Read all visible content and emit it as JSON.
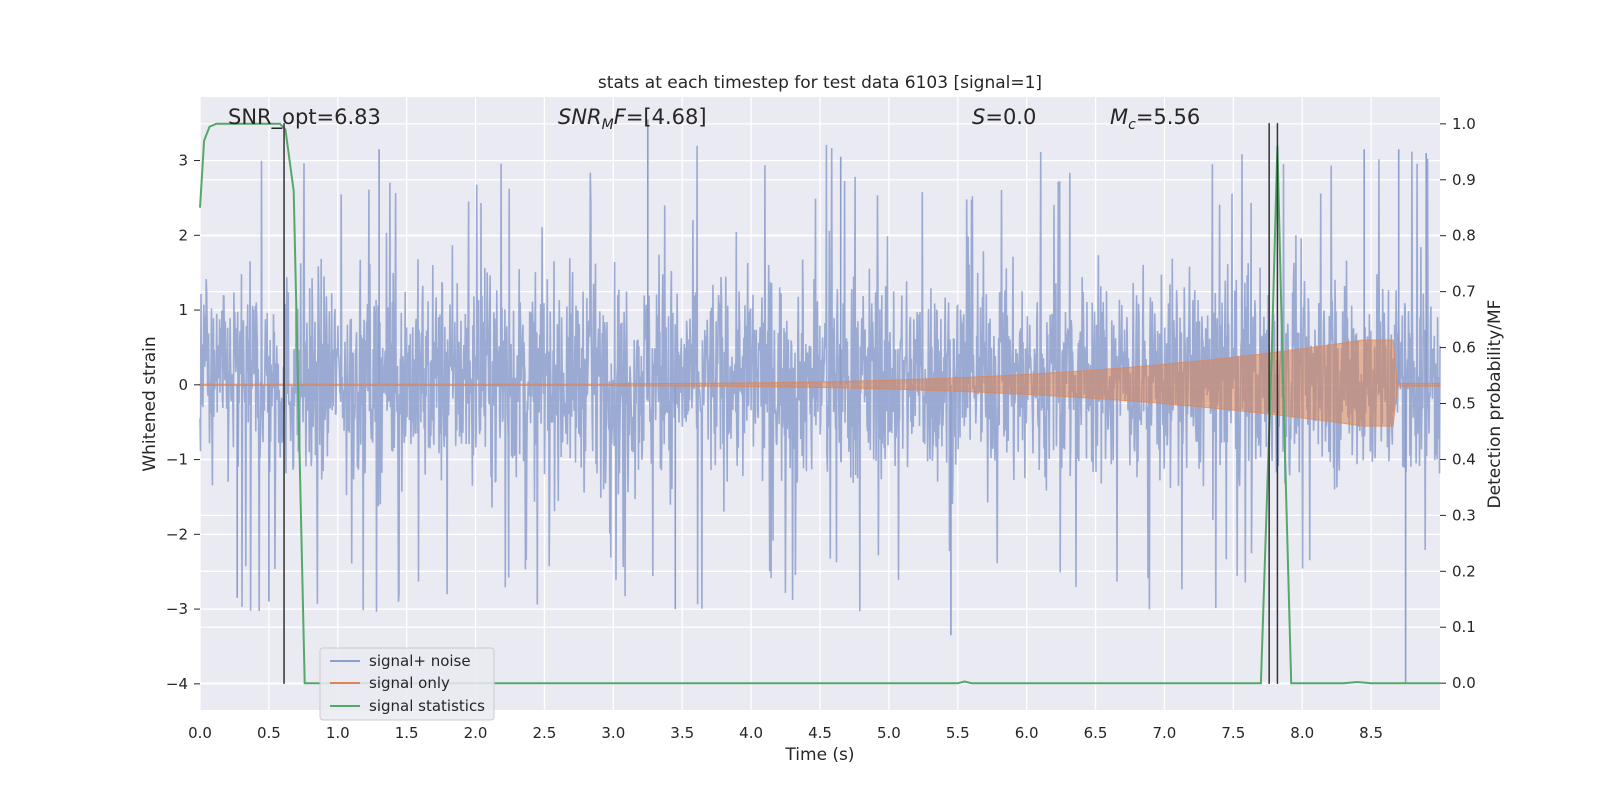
{
  "chart_data": {
    "type": "line",
    "title": "stats at each timestep for test data 6103 [signal=1]",
    "xlabel": "Time (s)",
    "ylabel": "Whitened strain",
    "y2label": "Detection probability/MF",
    "xlim": [
      0.0,
      9.0
    ],
    "ylim": [
      -4.35,
      3.85
    ],
    "y2lim": [
      -0.048,
      1.048
    ],
    "x_ticks": [
      0.0,
      0.5,
      1.0,
      1.5,
      2.0,
      2.5,
      3.0,
      3.5,
      4.0,
      4.5,
      5.0,
      5.5,
      6.0,
      6.5,
      7.0,
      7.5,
      8.0,
      8.5
    ],
    "x_tick_labels": [
      "0.0",
      "0.5",
      "1.0",
      "1.5",
      "2.0",
      "2.5",
      "3.0",
      "3.5",
      "4.0",
      "4.5",
      "5.0",
      "5.5",
      "6.0",
      "6.5",
      "7.0",
      "7.5",
      "8.0",
      "8.5"
    ],
    "y_ticks": [
      3,
      2,
      1,
      0,
      -1,
      -2,
      -3,
      -4
    ],
    "y_tick_labels": [
      "3",
      "2",
      "1",
      "0",
      "−1",
      "−2",
      "−3",
      "−4"
    ],
    "y2_ticks": [
      1.0,
      0.9,
      0.8,
      0.7,
      0.6,
      0.5,
      0.4,
      0.3,
      0.2,
      0.1,
      0.0
    ],
    "y2_tick_labels": [
      "1.0",
      "0.9",
      "0.8",
      "0.7",
      "0.6",
      "0.5",
      "0.4",
      "0.3",
      "0.2",
      "0.1",
      "0.0"
    ],
    "grid": true,
    "legend_position": "lower-left",
    "series": [
      {
        "name": "signal+ noise",
        "color": "#8c9fcc",
        "axis": "left",
        "t_range": [
          0.0,
          9.0
        ],
        "typical_envelope": [
          -1.9,
          2.1
        ],
        "spikes": [
          {
            "x": 0.27,
            "y": -2.85
          },
          {
            "x": 0.5,
            "y": -2.9
          },
          {
            "x": 1.3,
            "y": 3.15
          },
          {
            "x": 3.25,
            "y": 3.55
          },
          {
            "x": 3.45,
            "y": -3.0
          },
          {
            "x": 4.65,
            "y": 3.05
          },
          {
            "x": 5.45,
            "y": -3.35
          },
          {
            "x": 8.45,
            "y": 3.15
          },
          {
            "x": 8.7,
            "y": 3.15
          },
          {
            "x": 8.9,
            "y": 3.1
          },
          {
            "x": 8.75,
            "y": -4.0
          }
        ]
      },
      {
        "name": "signal only",
        "color": "#dd8452",
        "axis": "left",
        "chirp_start": 3.0,
        "chirp_end": 8.66,
        "peak_amplitude": 0.6,
        "post_merger_amplitude": 0.02
      },
      {
        "name": "signal statistics",
        "color": "#55a868",
        "axis": "right",
        "x": [
          0.0,
          0.03,
          0.07,
          0.12,
          0.3,
          0.58,
          0.62,
          0.68,
          0.76,
          0.85,
          5.5,
          5.55,
          5.6,
          7.7,
          7.78,
          7.82,
          7.86,
          7.92,
          8.0,
          8.3,
          8.4,
          8.5,
          9.0
        ],
        "y": [
          0.85,
          0.97,
          0.995,
          1.0,
          1.0,
          1.0,
          0.99,
          0.88,
          0.0,
          0.0,
          0.0,
          0.003,
          0.0,
          0.0,
          0.6,
          0.96,
          0.55,
          0.0,
          0.0,
          0.0,
          0.002,
          0.0,
          0.0
        ]
      }
    ],
    "vertical_lines": [
      {
        "x": 0.61,
        "y_from": -4.0,
        "y_to": 3.5,
        "color": "#333333"
      },
      {
        "x": 7.76,
        "y_from": -4.0,
        "y_to": 3.5,
        "color": "#333333"
      },
      {
        "x": 7.82,
        "y_from": -4.0,
        "y_to": 3.5,
        "color": "#333333"
      }
    ],
    "annotations": [
      {
        "id": "snr-opt",
        "text": "SNR_opt=6.83",
        "italic": false
      },
      {
        "id": "snr-mf",
        "text": "SNR_MF=[4.68]",
        "italic": true
      },
      {
        "id": "s-value",
        "text": "S=0.0",
        "italic": true
      },
      {
        "id": "mc-value",
        "text": "M_c=5.56",
        "italic": true
      }
    ]
  }
}
